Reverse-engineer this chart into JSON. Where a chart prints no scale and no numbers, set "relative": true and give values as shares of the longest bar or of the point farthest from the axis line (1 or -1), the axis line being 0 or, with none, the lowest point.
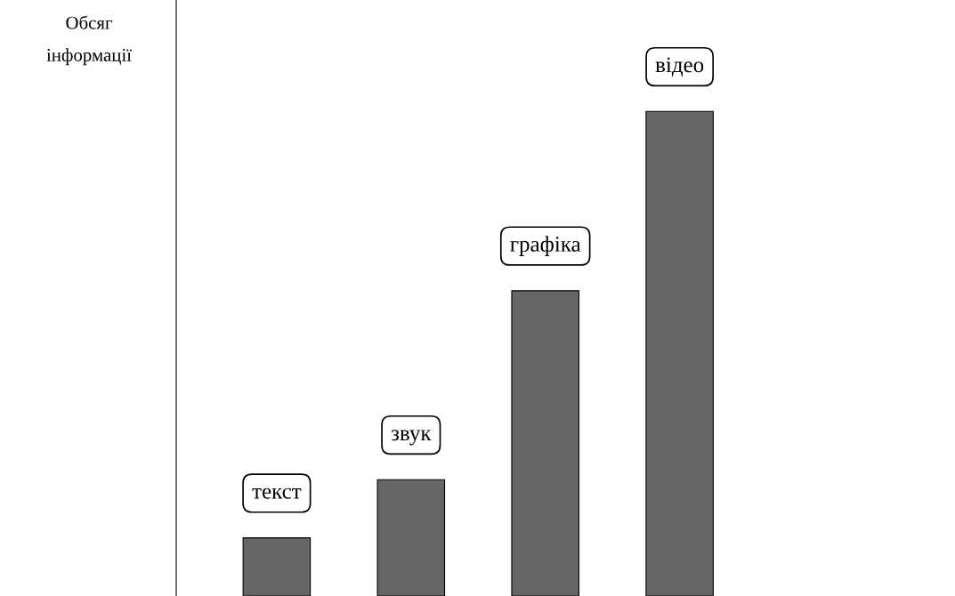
{
  "chart_data": {
    "type": "bar",
    "relative": true,
    "ylabel": "Обсяг\nінформації",
    "categories": [
      "текст",
      "звук",
      "графіка",
      "відео"
    ],
    "values": [
      0.12,
      0.24,
      0.63,
      1
    ],
    "color": "#666666"
  }
}
